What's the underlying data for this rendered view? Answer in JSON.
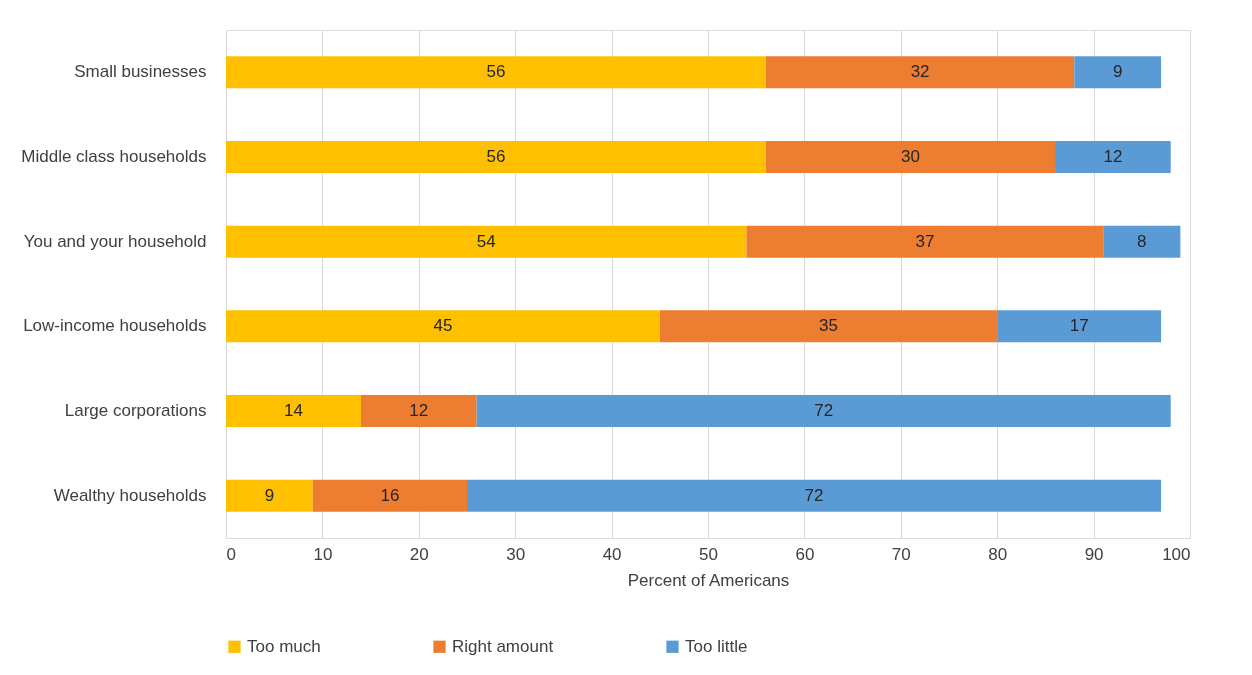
{
  "chart_data": {
    "type": "bar",
    "orientation": "horizontal",
    "stacked": true,
    "categories": [
      "Small businesses",
      "Middle class households",
      "You and your household",
      "Low-income households",
      "Large corporations",
      "Wealthy households"
    ],
    "series": [
      {
        "name": "Too much",
        "color": "#ffc000",
        "values": [
          56,
          56,
          54,
          45,
          14,
          9
        ]
      },
      {
        "name": "Right amount",
        "color": "#ed7d31",
        "values": [
          32,
          30,
          37,
          35,
          12,
          16
        ]
      },
      {
        "name": "Too little",
        "color": "#5b9bd5",
        "values": [
          9,
          12,
          8,
          17,
          72,
          72
        ]
      }
    ],
    "xlabel": "Percent of Americans",
    "xlim": [
      0,
      100
    ],
    "xticks": [
      0,
      10,
      20,
      30,
      40,
      50,
      60,
      70,
      80,
      90,
      100
    ],
    "grid": "x",
    "legend": "bottom",
    "data_labels": true
  }
}
